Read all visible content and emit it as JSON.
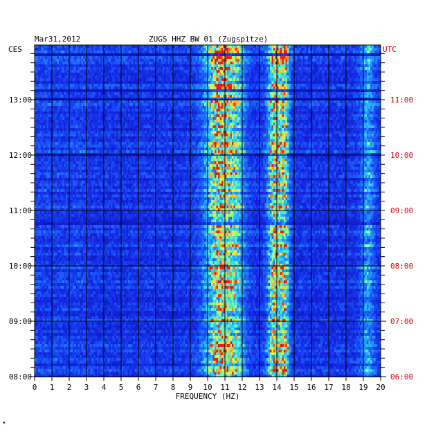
{
  "chart_data": {
    "type": "heatmap",
    "title": "ZUGS HHZ BW 01 (Zugspitze)",
    "date": "Mar31,2012",
    "xlabel": "FREQUENCY (HZ)",
    "left_axis_label": "CES",
    "right_axis_label": "UTC",
    "xlim": [
      0,
      20
    ],
    "x_ticks": [
      "0",
      "1",
      "2",
      "3",
      "4",
      "5",
      "6",
      "7",
      "8",
      "9",
      "10",
      "11",
      "12",
      "13",
      "14",
      "15",
      "16",
      "17",
      "18",
      "19",
      "20"
    ],
    "left_time_ticks": [
      "13:00",
      "12:00",
      "11:00",
      "10:00",
      "09:00",
      "08:00"
    ],
    "right_time_ticks": [
      "11:00",
      "10:00",
      "09:00",
      "08:00",
      "07:00",
      "06:00"
    ],
    "time_range_ces": [
      "08:00",
      "13:48"
    ],
    "grid": true,
    "colors": {
      "background": "#0a0a96",
      "base": "#1e3cff",
      "grid": "#000000",
      "right_labels": "#cc0000",
      "text": "#000000"
    },
    "energy_bands_hz": [
      {
        "center": 10.7,
        "width": 0.9,
        "strength": 0.85
      },
      {
        "center": 13.8,
        "width": 0.4,
        "strength": 0.75
      },
      {
        "center": 14.4,
        "width": 0.3,
        "strength": 0.7
      },
      {
        "center": 19.2,
        "width": 0.4,
        "strength": 0.4
      },
      {
        "center": 11.7,
        "width": 0.5,
        "strength": 0.35
      }
    ]
  },
  "footer": {
    "mark": "✶"
  }
}
